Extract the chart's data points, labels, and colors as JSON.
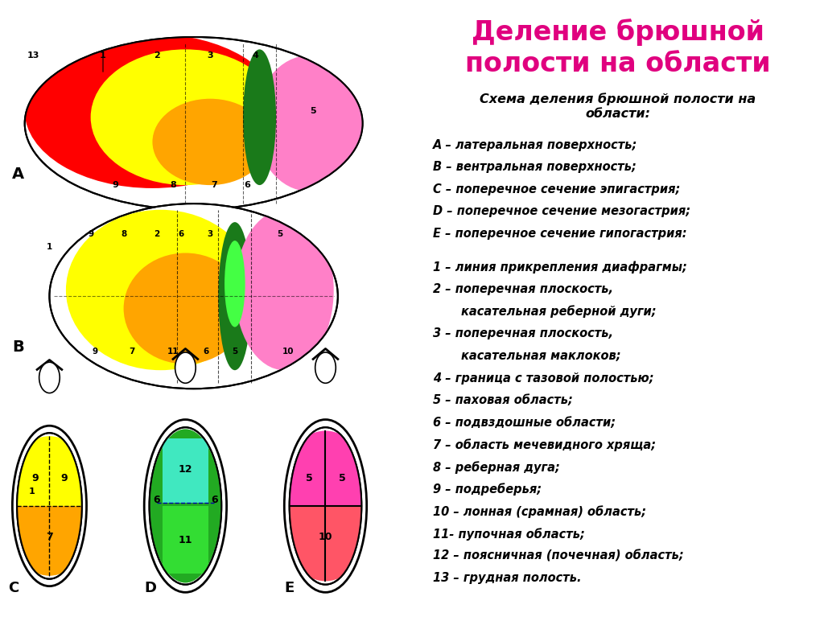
{
  "title": "Деление брюшной\nполости на области",
  "title_color": "#E0007F",
  "title_fontsize": 24,
  "subtitle": "Схема деления брюшной полости на\nобласти:",
  "subtitle_fontsize": 11.5,
  "legend_lines": [
    {
      "text": "А – латеральная поверхность;",
      "indent": false
    },
    {
      "text": "B – вентральная поверхность;",
      "indent": false
    },
    {
      "text": "C – поперечное сечение эпигастрия;",
      "indent": false
    },
    {
      "text": "D – поперечное сечение мезогастрия;",
      "indent": false
    },
    {
      "text": "E – поперечное сечение гипогастрия:",
      "indent": false
    },
    {
      "text": "",
      "indent": false
    },
    {
      "text": "1 – линия прикрепления диафрагмы;",
      "indent": false
    },
    {
      "text": "2 – поперечная плоскость,",
      "indent": false
    },
    {
      "text": "касательная реберной дуги;",
      "indent": true
    },
    {
      "text": "3 – поперечная плоскость,",
      "indent": false
    },
    {
      "text": "касательная маклоков;",
      "indent": true
    },
    {
      "text": "4 – граница с тазовой полостью;",
      "indent": false
    },
    {
      "text": "5 – паховая область;",
      "indent": false
    },
    {
      "text": "6 – подвздошные области;",
      "indent": false
    },
    {
      "text": "7 – область мечевидного хряща;",
      "indent": false
    },
    {
      "text": "8 – реберная дуга;",
      "indent": false
    },
    {
      "text": "9 – подреберья;",
      "indent": false
    },
    {
      "text": "10 – лонная (срамная) область;",
      "indent": false
    },
    {
      "text": "11- пупочная область;",
      "indent": false
    },
    {
      "text": "12 – поясничная (почечная) область;",
      "indent": false
    },
    {
      "text": "13 – грудная полость.",
      "indent": false
    }
  ],
  "colors": {
    "red": "#FF0000",
    "yellow": "#FFFF00",
    "orange": "#FFA500",
    "green_dark": "#1A7A1A",
    "green_medium": "#22AA22",
    "cyan_light": "#40E8C0",
    "pink_light": "#FF80C8",
    "pink_magenta": "#FF40B0",
    "red_salmon": "#FF5566",
    "white": "#FFFFFF",
    "bg": "#FFFFFF",
    "black": "#000000",
    "gray_light": "#DDDDDD"
  }
}
